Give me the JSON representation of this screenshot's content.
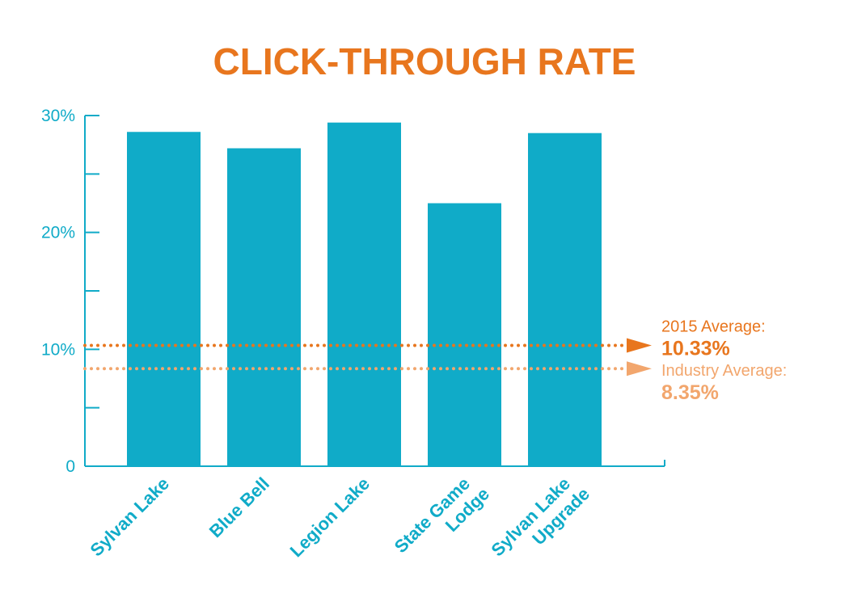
{
  "chart_data": {
    "type": "bar",
    "title": "CLICK-THROUGH RATE",
    "categories": [
      "Sylvan Lake",
      "Blue Bell",
      "Legion Lake",
      "State Game Lodge",
      "Sylvan Lake Upgrade"
    ],
    "category_lines": [
      [
        "Sylvan Lake"
      ],
      [
        "Blue Bell"
      ],
      [
        "Legion Lake"
      ],
      [
        "State Game",
        "Lodge"
      ],
      [
        "Sylvan Lake",
        "Upgrade"
      ]
    ],
    "values": [
      28.6,
      27.2,
      29.4,
      22.5,
      28.5
    ],
    "ylim": [
      0,
      30
    ],
    "yticks": [
      0,
      10,
      20,
      30
    ],
    "ytick_labels": [
      "0",
      "10%",
      "20%",
      "30%"
    ],
    "xlabel": "",
    "ylabel": "",
    "grid": false,
    "reference_lines": [
      {
        "label": "2015 Average:",
        "value_text": "10.33%",
        "value": 10.33,
        "color": "#e8761e"
      },
      {
        "label": "Industry Average:",
        "value_text": "8.35%",
        "value": 8.35,
        "color": "#f2a66d"
      }
    ],
    "colors": {
      "bar": "#10abc8",
      "axis": "#10abc8",
      "title": "#e8761e"
    }
  }
}
